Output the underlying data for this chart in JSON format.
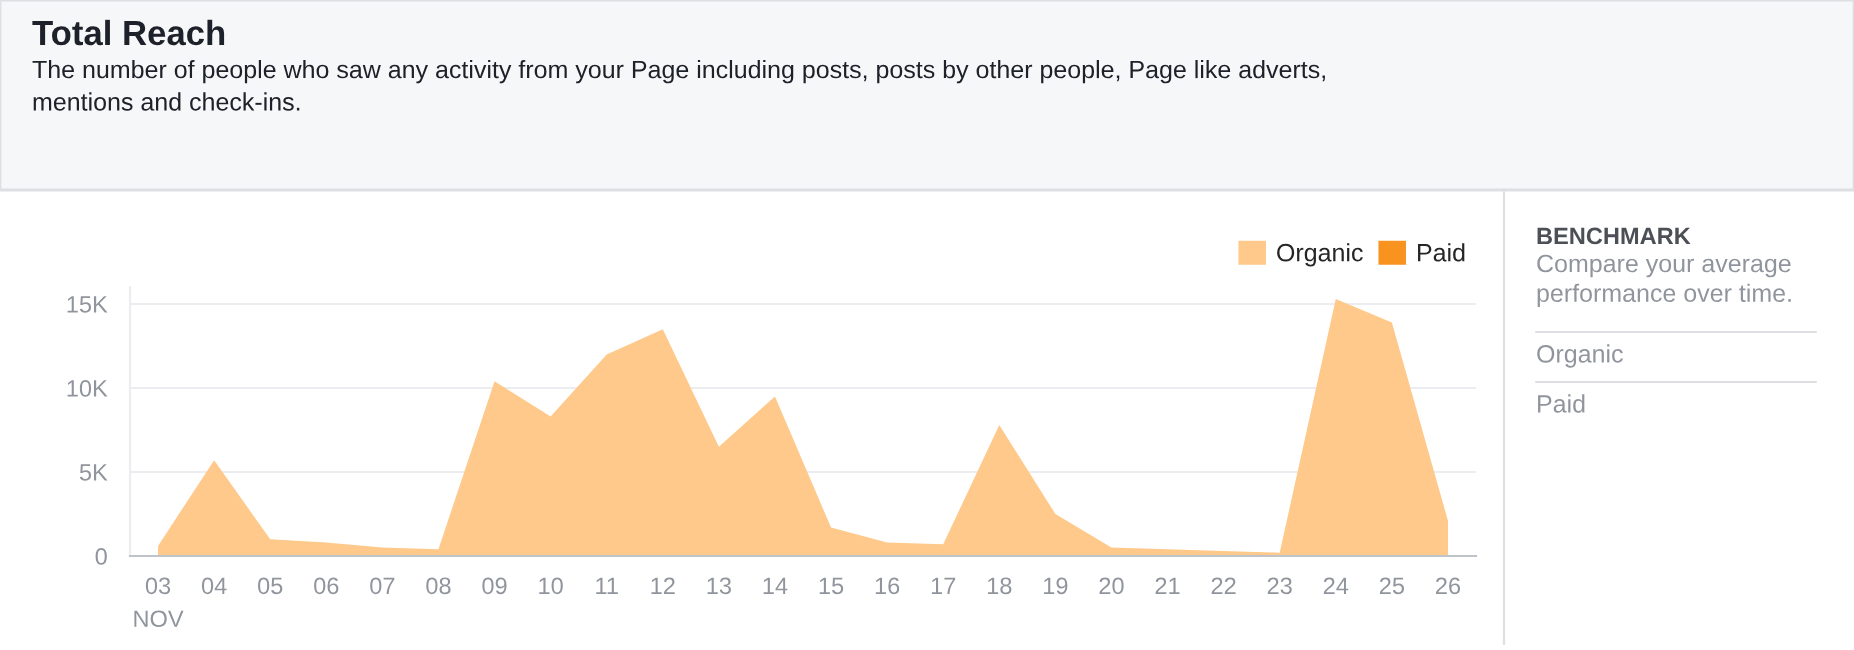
{
  "chart_data": {
    "type": "area",
    "title": "Total Reach",
    "subtitle": "The number of people who saw any activity from your Page including posts, posts by other people, Page like adverts,\nmentions and check-ins.",
    "categories": [
      "03",
      "04",
      "05",
      "06",
      "07",
      "08",
      "09",
      "10",
      "11",
      "12",
      "13",
      "14",
      "15",
      "16",
      "17",
      "18",
      "19",
      "20",
      "21",
      "22",
      "23",
      "24",
      "25",
      "26"
    ],
    "series": [
      {
        "name": "Organic",
        "color": "#fec98a",
        "values": [
          600,
          5700,
          1000,
          800,
          500,
          400,
          10400,
          8300,
          12000,
          13500,
          6500,
          9500,
          1700,
          800,
          700,
          7800,
          2500,
          500,
          400,
          300,
          200,
          15300,
          13900,
          2100
        ]
      },
      {
        "name": "Paid",
        "color": "#f7931e",
        "values": [
          null,
          null,
          null,
          null,
          null,
          null,
          null,
          null,
          null,
          null,
          null,
          null,
          null,
          null,
          null,
          null,
          null,
          null,
          null,
          null,
          null,
          null,
          null,
          null
        ]
      }
    ],
    "ylim": [
      0,
      16000
    ],
    "yticks": [
      {
        "value": 0,
        "label": "0"
      },
      {
        "value": 5000,
        "label": "5K"
      },
      {
        "value": 10000,
        "label": "10K"
      },
      {
        "value": 15000,
        "label": "15K"
      }
    ],
    "grid": "y",
    "legend": "top right",
    "annotations": [
      "NOV",
      "BENCHMARK",
      "Compare your average\nperformance over time.",
      "Organic",
      "Paid"
    ]
  }
}
